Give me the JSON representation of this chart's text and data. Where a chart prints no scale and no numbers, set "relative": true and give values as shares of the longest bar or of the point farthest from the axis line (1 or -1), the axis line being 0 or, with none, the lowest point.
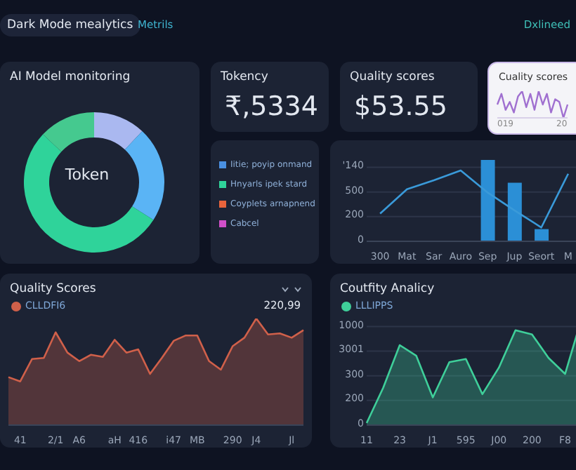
{
  "chart_data": [
    {
      "type": "other",
      "title": "Dark Mode mealytics",
      "annotations": [
        "Metrils",
        "Dxlineed"
      ]
    },
    {
      "type": "donut",
      "title": "AI Model monitoring",
      "categories": [
        null,
        null,
        null,
        null
      ],
      "values": [
        12,
        22,
        53,
        13
      ],
      "colors": [
        "#aab8f0",
        "#5ab4f5",
        "#2fd39a",
        "#45c98f"
      ],
      "annotations": [
        "Token"
      ]
    },
    {
      "type": "other",
      "title": "Tokency",
      "annotations": [
        "₹,5334"
      ]
    },
    {
      "type": "other",
      "annotations": [
        "Iitie; poyip onmand",
        "Hnyarls ipek stard",
        "Coyplets arnapnend",
        "Cabcel"
      ]
    },
    {
      "type": "other",
      "title": "Quality scores",
      "annotations": [
        "$53.55"
      ]
    },
    {
      "type": "line",
      "title": "Cuality scores",
      "categories": [
        null,
        null,
        null,
        null,
        null,
        null,
        null,
        null,
        null,
        null,
        null,
        null,
        null,
        null,
        null,
        null,
        null,
        null
      ],
      "relative": true,
      "color": "#a070d0",
      "values": [
        0.5,
        0.9,
        0.3,
        0.6,
        0.2,
        0.8,
        1,
        0.4,
        0.9,
        0.3,
        1,
        0.5,
        0.9,
        0.2,
        0.7,
        0.6,
        0,
        0.5
      ],
      "annotations": [
        "019",
        "20"
      ]
    },
    {
      "type": "bar",
      "categories": [
        "300",
        "Mat",
        "Sar",
        "Auro",
        "Sep",
        "Jup",
        "Seort",
        "M"
      ],
      "relative": true,
      "series": [
        {
          "type": "bar",
          "color": "#2b8fd6",
          "values": [
            null,
            null,
            null,
            null,
            1,
            0.72,
            0.15,
            null
          ]
        },
        {
          "type": "line",
          "color": "#3a9ad9",
          "values": [
            0.34,
            0.64,
            0.75,
            0.87,
            0.6,
            0.38,
            0.17,
            0.83
          ]
        }
      ],
      "annotations": [
        "'140",
        "500",
        "200",
        "0"
      ],
      "grid": "y"
    },
    {
      "type": "area",
      "title": "Quality Scores",
      "categories": [
        null,
        "41",
        null,
        null,
        "2/1",
        null,
        "A6",
        null,
        null,
        "aH",
        null,
        "416",
        null,
        null,
        "i47",
        null,
        "MB",
        null,
        null,
        "290",
        null,
        "J4",
        null,
        null,
        "Jl",
        null
      ],
      "relative": true,
      "series": [
        {
          "name": "CLLDFI6",
          "color": "#d0604a",
          "values": [
            0.45,
            0.41,
            0.62,
            0.63,
            0.87,
            0.68,
            0.6,
            0.66,
            0.64,
            0.8,
            0.68,
            0.71,
            0.48,
            0.63,
            0.79,
            0.84,
            0.84,
            0.6,
            0.52,
            0.74,
            0.82,
            1,
            0.85,
            0.86,
            0.82,
            0.89
          ]
        }
      ],
      "legend": "top left",
      "annotations": [
        "220,99"
      ]
    },
    {
      "type": "area",
      "title": "Coutfity Analicy",
      "categories": [
        "11",
        null,
        "23",
        null,
        "J1",
        null,
        "595",
        null,
        "J00",
        null,
        "200",
        null,
        "F8",
        null
      ],
      "relative": true,
      "series": [
        {
          "name": "LLLIPPS",
          "color": "#3fcf9a",
          "values": [
            0.02,
            0.35,
            0.75,
            0.65,
            0.26,
            0.59,
            0.62,
            0.29,
            0.54,
            0.89,
            0.85,
            0.63,
            0.48,
            1
          ]
        }
      ],
      "annotations": [
        "1000",
        "3001",
        "300",
        "200",
        "0"
      ],
      "grid": "y",
      "legend": "top left"
    }
  ]
}
